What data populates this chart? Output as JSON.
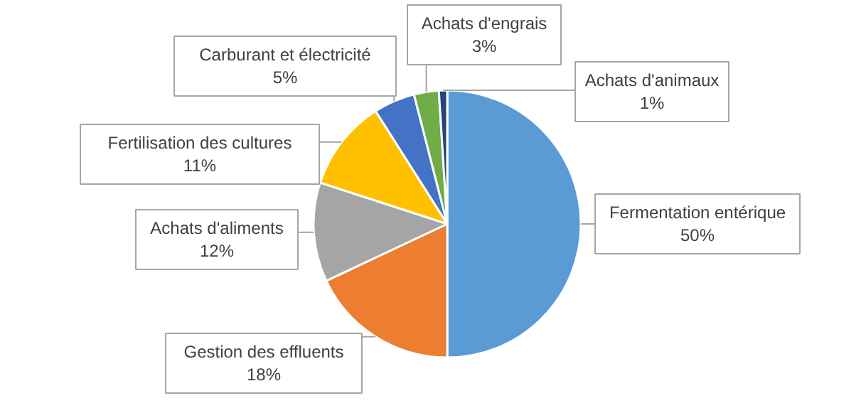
{
  "chart_data": {
    "type": "pie",
    "categories": [
      "Fermentation entérique",
      "Gestion des effluents",
      "Achats d'aliments",
      "Fertilisation des cultures",
      "Carburant et électricité",
      "Achats d'engrais",
      "Achats d'animaux"
    ],
    "values": [
      50,
      18,
      12,
      11,
      5,
      3,
      1
    ],
    "colors": [
      "#5b9bd5",
      "#ed7d31",
      "#a5a5a5",
      "#ffc000",
      "#4472c4",
      "#70ad47",
      "#264478"
    ],
    "value_labels": [
      "50%",
      "18%",
      "12%",
      "11%",
      "5%",
      "3%",
      "1%"
    ]
  }
}
